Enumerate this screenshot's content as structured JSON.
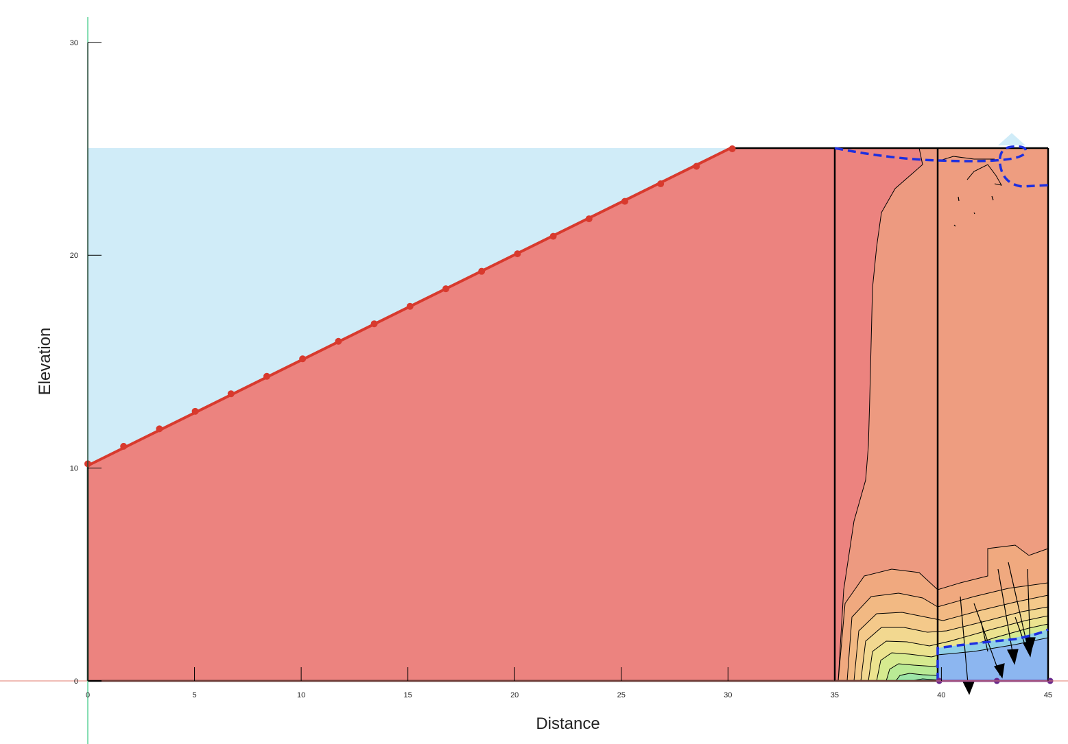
{
  "diagram": {
    "x_axis": {
      "title": "Distance",
      "range": [
        0,
        45
      ],
      "ticks": [
        0,
        5,
        10,
        15,
        20,
        25,
        30,
        35,
        40,
        45
      ]
    },
    "y_axis": {
      "title": "Elevation",
      "range": [
        0,
        30
      ],
      "ticks": [
        0,
        10,
        20,
        30
      ]
    },
    "regions": [
      {
        "name": "slope-soil",
        "color": "#ec837f"
      },
      {
        "name": "middle-zone",
        "color": "#ed9a80"
      },
      {
        "name": "right-zone",
        "color": "#ee9d80"
      },
      {
        "name": "water-above-slope",
        "color": "#d0ecf8"
      },
      {
        "name": "saturated-pocket",
        "color": "#8cb6f0"
      }
    ],
    "slope_line": {
      "color": "#d83a2e",
      "from": [
        0,
        10.2
      ],
      "to": [
        30.2,
        25
      ],
      "node_count": 19
    },
    "geometry": {
      "top_elevation": 25,
      "crest_x": 30.2,
      "divider_x": [
        35.1,
        39.9,
        45.1
      ],
      "bottom_nodes_x": [
        39.9,
        42.6,
        45.1
      ]
    },
    "colors": {
      "axis_x": "#e27a6e",
      "axis_y": "#5fd39a",
      "water_line": "#1d2fe0",
      "boundary": "#000000",
      "node_purple": "#6a2a8c"
    }
  }
}
